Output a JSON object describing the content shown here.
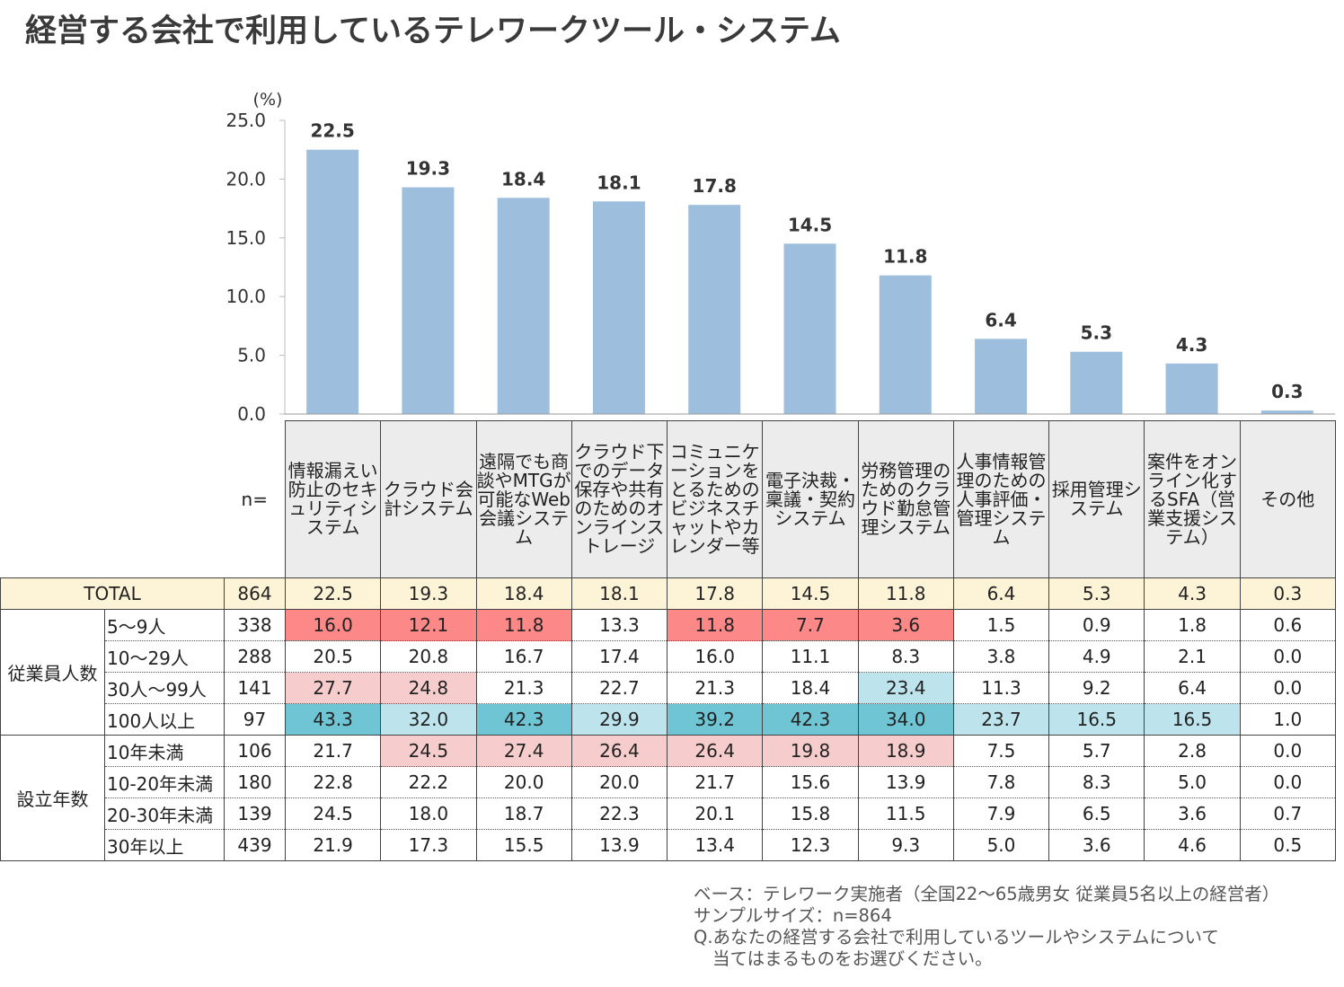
{
  "title": "経営する会社で利用しているテレワークツール・システム",
  "chart_data": {
    "type": "bar",
    "unit_label": "(%)",
    "ylim": [
      0,
      25
    ],
    "yticks": [
      "25.0",
      "20.0",
      "15.0",
      "10.0",
      "5.0",
      "0.0"
    ],
    "categories": [
      "情報漏えい防止のセキュリティシステム",
      "クラウド会計システム",
      "遠隔でも商談やMTGが可能なWeb会議システム",
      "クラウド下でのデータ保存や共有のためのオンラインストレージ",
      "コミュニケーションをとるためのビジネスチャットやカレンダー等",
      "電子決裁・稟議・契約システム",
      "労務管理のためのクラウド勤怠管理システム",
      "人事情報管理のための人事評価・管理システム",
      "採用管理システム",
      "案件をオンライン化するSFA（営業支援システム）",
      "その他"
    ],
    "values": [
      22.5,
      19.3,
      18.4,
      18.1,
      17.8,
      14.5,
      11.8,
      6.4,
      5.3,
      4.3,
      0.3
    ],
    "value_labels": [
      "22.5",
      "19.3",
      "18.4",
      "18.1",
      "17.8",
      "14.5",
      "11.8",
      "6.4",
      "5.3",
      "4.3",
      "0.3"
    ],
    "bar_color": "#9dbfdd"
  },
  "table": {
    "n_label": "n=",
    "total": {
      "label": "TOTAL",
      "n": "864",
      "values": [
        "22.5",
        "19.3",
        "18.4",
        "18.1",
        "17.8",
        "14.5",
        "11.8",
        "6.4",
        "5.3",
        "4.3",
        "0.3"
      ]
    },
    "groups": [
      {
        "label": "従業員人数",
        "rows": [
          {
            "label": "5～9人",
            "n": "338",
            "values": [
              "16.0",
              "12.1",
              "11.8",
              "13.3",
              "11.8",
              "7.7",
              "3.6",
              "1.5",
              "0.9",
              "1.8",
              "0.6"
            ],
            "highlight": [
              "red",
              "red",
              "red",
              "",
              "red",
              "red",
              "red",
              "",
              "",
              "",
              ""
            ]
          },
          {
            "label": "10～29人",
            "n": "288",
            "values": [
              "20.5",
              "20.8",
              "16.7",
              "17.4",
              "16.0",
              "11.1",
              "8.3",
              "3.8",
              "4.9",
              "2.1",
              "0.0"
            ],
            "highlight": [
              "",
              "",
              "",
              "",
              "",
              "",
              "",
              "",
              "",
              "",
              ""
            ]
          },
          {
            "label": "30人～99人",
            "n": "141",
            "values": [
              "27.7",
              "24.8",
              "21.3",
              "22.7",
              "21.3",
              "18.4",
              "23.4",
              "11.3",
              "9.2",
              "6.4",
              "0.0"
            ],
            "highlight": [
              "pink",
              "pink",
              "",
              "",
              "",
              "",
              "lblue",
              "",
              "",
              "",
              ""
            ]
          },
          {
            "label": "100人以上",
            "n": "97",
            "values": [
              "43.3",
              "32.0",
              "42.3",
              "29.9",
              "39.2",
              "42.3",
              "34.0",
              "23.7",
              "16.5",
              "16.5",
              "1.0"
            ],
            "highlight": [
              "teal",
              "lblue",
              "teal",
              "lblue",
              "teal",
              "teal",
              "teal",
              "lblue",
              "lblue",
              "lblue",
              ""
            ]
          }
        ]
      },
      {
        "label": "設立年数",
        "rows": [
          {
            "label": "10年未満",
            "n": "106",
            "values": [
              "21.7",
              "24.5",
              "27.4",
              "26.4",
              "26.4",
              "19.8",
              "18.9",
              "7.5",
              "5.7",
              "2.8",
              "0.0"
            ],
            "highlight": [
              "",
              "pink",
              "pink",
              "pink",
              "pink",
              "pink",
              "pink",
              "",
              "",
              "",
              ""
            ]
          },
          {
            "label": "10-20年未満",
            "n": "180",
            "values": [
              "22.8",
              "22.2",
              "20.0",
              "20.0",
              "21.7",
              "15.6",
              "13.9",
              "7.8",
              "8.3",
              "5.0",
              "0.0"
            ],
            "highlight": [
              "",
              "",
              "",
              "",
              "",
              "",
              "",
              "",
              "",
              "",
              ""
            ]
          },
          {
            "label": "20-30年未満",
            "n": "139",
            "values": [
              "24.5",
              "18.0",
              "18.7",
              "22.3",
              "20.1",
              "15.8",
              "11.5",
              "7.9",
              "6.5",
              "3.6",
              "0.7"
            ],
            "highlight": [
              "",
              "",
              "",
              "",
              "",
              "",
              "",
              "",
              "",
              "",
              ""
            ]
          },
          {
            "label": "30年以上",
            "n": "439",
            "values": [
              "21.9",
              "17.3",
              "15.5",
              "13.9",
              "13.4",
              "12.3",
              "9.3",
              "5.0",
              "3.6",
              "4.6",
              "0.5"
            ],
            "highlight": [
              "",
              "",
              "",
              "",
              "",
              "",
              "",
              "",
              "",
              "",
              ""
            ]
          }
        ]
      }
    ]
  },
  "footnote": {
    "base": "ベース：テレワーク実施者（全国22～65歳男女 従業員5名以上の経営者）",
    "sample": "サンプルサイズ：n=864",
    "question": "Q.あなたの経営する会社で利用しているツールやシステムについて",
    "question2": "当てはまるものをお選びください。"
  }
}
